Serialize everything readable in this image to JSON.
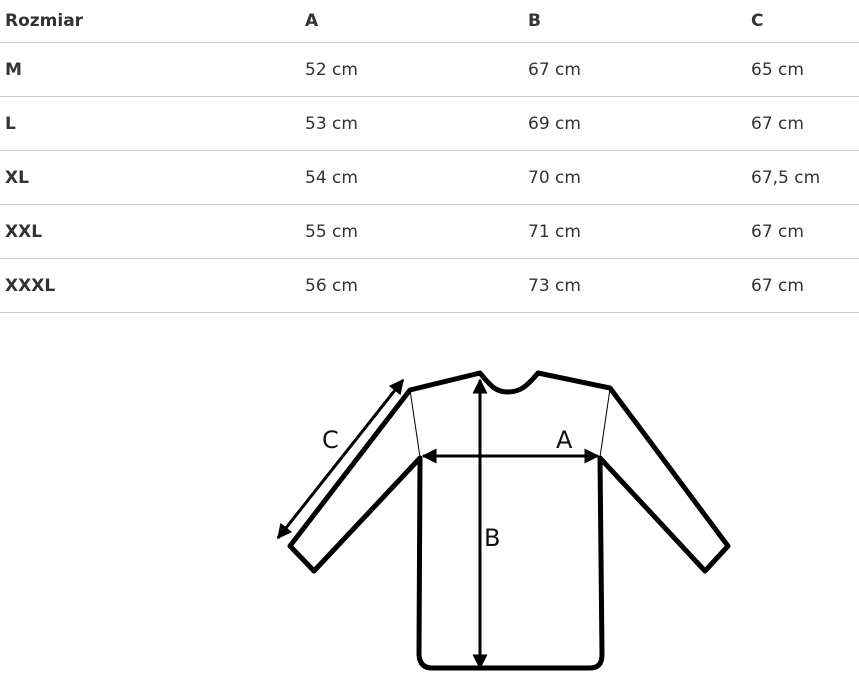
{
  "table": {
    "headers": [
      "Rozmiar",
      "A",
      "B",
      "C"
    ],
    "rows": [
      [
        "M",
        "52 cm",
        "67 cm",
        "65 cm"
      ],
      [
        "L",
        "53 cm",
        "69 cm",
        "67 cm"
      ],
      [
        "XL",
        "54 cm",
        "70 cm",
        "67,5 cm"
      ],
      [
        "XXL",
        "55 cm",
        "71 cm",
        "67 cm"
      ],
      [
        "XXXL",
        "56 cm",
        "73 cm",
        "67 cm"
      ]
    ]
  },
  "diagram": {
    "labels": {
      "a": "A",
      "b": "B",
      "c": "C"
    }
  }
}
